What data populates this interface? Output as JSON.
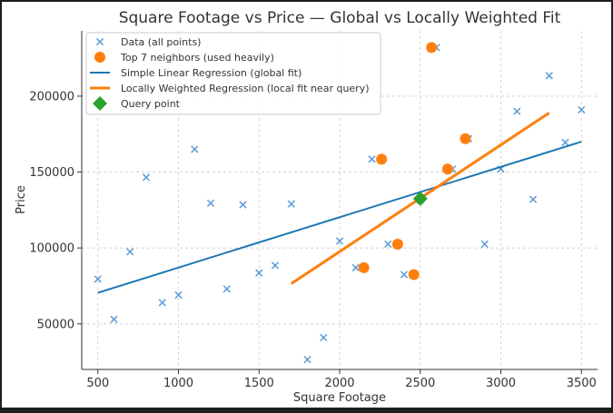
{
  "chart_data": {
    "type": "scatter",
    "title": "Square Footage vs Price — Global vs Locally Weighted Fit",
    "xlabel": "Square Footage",
    "ylabel": "Price",
    "xlim": [
      400,
      3600
    ],
    "ylim": [
      20000,
      243000
    ],
    "xticks": [
      500,
      1000,
      1500,
      2000,
      2500,
      3000,
      3500
    ],
    "yticks": [
      50000,
      100000,
      150000,
      200000
    ],
    "grid": true,
    "legend_position": "top-left",
    "series": [
      {
        "name": "Data (all points)",
        "kind": "scatter",
        "marker": "x",
        "color": "#5b9bd5",
        "x": [
          500,
          600,
          700,
          800,
          900,
          1000,
          1100,
          1200,
          1300,
          1400,
          1500,
          1600,
          1700,
          1800,
          1900,
          2000,
          2100,
          2200,
          2300,
          2400,
          2500,
          2600,
          2700,
          2800,
          2900,
          3000,
          3100,
          3200,
          3300,
          3400,
          3500
        ],
        "y": [
          79500,
          53000,
          97500,
          146500,
          64000,
          69000,
          165000,
          129500,
          73000,
          128500,
          83500,
          88500,
          129000,
          26500,
          41000,
          104500,
          87000,
          158500,
          102500,
          82500,
          131500,
          232000,
          152000,
          172000,
          102500,
          152000,
          190000,
          132000,
          213500,
          169500,
          191000
        ]
      },
      {
        "name": "Top 7 neighbors (used heavily)",
        "kind": "scatter",
        "marker": "circle",
        "color": "#ff7f0e",
        "x": [
          2150,
          2260,
          2360,
          2460,
          2570,
          2670,
          2780
        ],
        "y": [
          87000,
          158500,
          102500,
          82500,
          232000,
          152000,
          172000
        ]
      },
      {
        "name": "Simple Linear Regression (global fit)",
        "kind": "line",
        "color": "#1f77b4",
        "x": [
          500,
          3500
        ],
        "y": [
          70500,
          170000
        ]
      },
      {
        "name": "Locally Weighted Regression (local fit near query)",
        "kind": "line",
        "color": "#ff7f0e",
        "x": [
          1700,
          3300
        ],
        "y": [
          76500,
          189000
        ]
      },
      {
        "name": "Query point",
        "kind": "scatter",
        "marker": "diamond",
        "color": "#2ca02c",
        "x": [
          2500
        ],
        "y": [
          132500
        ]
      }
    ]
  }
}
